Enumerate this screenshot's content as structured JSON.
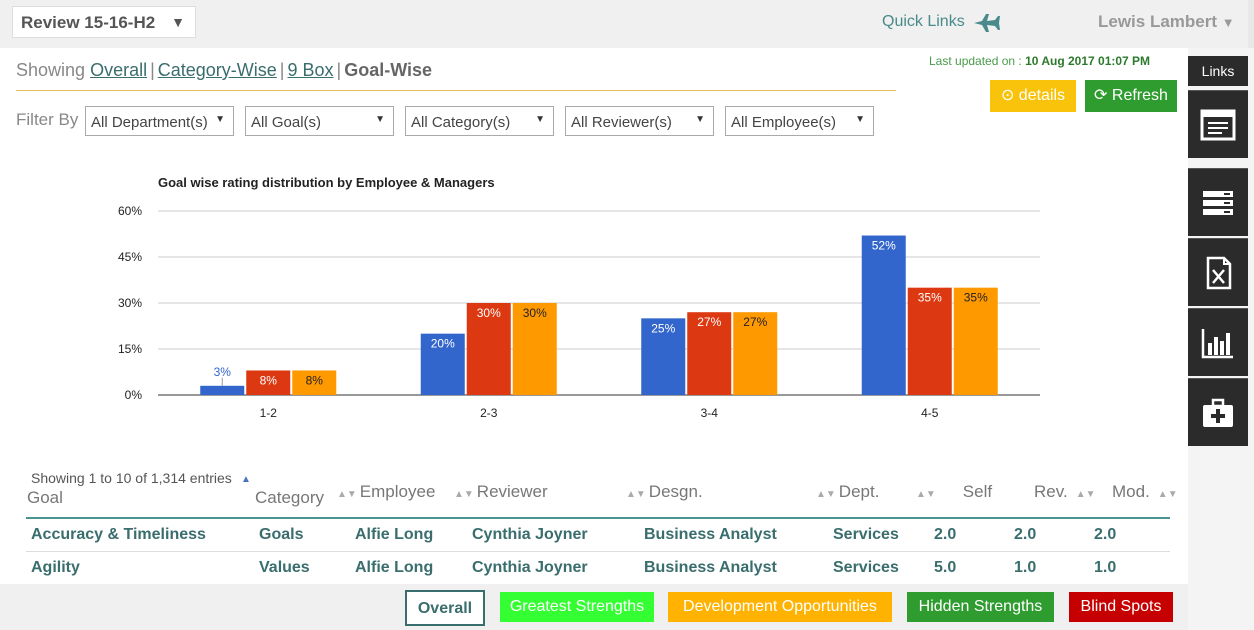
{
  "header": {
    "review_label": "Review 15-16-H2",
    "quick_links": "Quick Links",
    "user": "Lewis Lambert"
  },
  "view": {
    "showing": "Showing",
    "links": [
      "Overall",
      "Category-Wise",
      "9 Box"
    ],
    "current": "Goal-Wise"
  },
  "status": {
    "last_updated_label": "Last updated on :",
    "last_updated_value": "10 Aug 2017 01:07 PM",
    "details": "details",
    "refresh": "Refresh"
  },
  "filters": {
    "label": "Filter By",
    "items": [
      "All Department(s)",
      "All Goal(s)",
      "All Category(s)",
      "All Reviewer(s)",
      "All Employee(s)"
    ]
  },
  "chart_data": {
    "type": "bar",
    "title": "Goal wise rating distribution by Employee & Managers",
    "categories": [
      "1-2",
      "2-3",
      "3-4",
      "4-5"
    ],
    "series": [
      {
        "values": [
          3,
          20,
          25,
          52
        ],
        "color": "#3366cc",
        "labels": [
          "3%",
          "20%",
          "25%",
          "52%"
        ]
      },
      {
        "values": [
          8,
          30,
          27,
          35
        ],
        "color": "#dc3912",
        "labels": [
          "8%",
          "30%",
          "27%",
          "35%"
        ]
      },
      {
        "values": [
          8,
          30,
          27,
          35
        ],
        "color": "#ff9900",
        "labels": [
          "8%",
          "30%",
          "27%",
          "35%"
        ]
      }
    ],
    "ylim": [
      0,
      60
    ],
    "yticks": [
      "0%",
      "15%",
      "30%",
      "45%",
      "60%"
    ],
    "grid": true
  },
  "table": {
    "info": "Showing 1 to 10 of 1,314 entries",
    "headers": [
      "Goal",
      "Category",
      "Employee",
      "Reviewer",
      "Desgn.",
      "Dept.",
      "Self",
      "Rev.",
      "Mod."
    ],
    "rows": [
      [
        "Accuracy & Timeliness",
        "Goals",
        "Alfie Long",
        "Cynthia Joyner",
        "Business Analyst",
        "Services",
        "2.0",
        "2.0",
        "2.0"
      ],
      [
        "Agility",
        "Values",
        "Alfie Long",
        "Cynthia Joyner",
        "Business Analyst",
        "Services",
        "5.0",
        "1.0",
        "1.0"
      ]
    ]
  },
  "bottom_tabs": {
    "overall": "Overall",
    "greatest": "Greatest Strengths",
    "development": "Development Opportunities",
    "hidden": "Hidden Strengths",
    "blind": "Blind Spots"
  },
  "sidebar": {
    "links_label": "Links",
    "icons": [
      "report-icon",
      "list-icon",
      "excel-icon",
      "bar-chart-icon",
      "medical-kit-icon"
    ]
  }
}
